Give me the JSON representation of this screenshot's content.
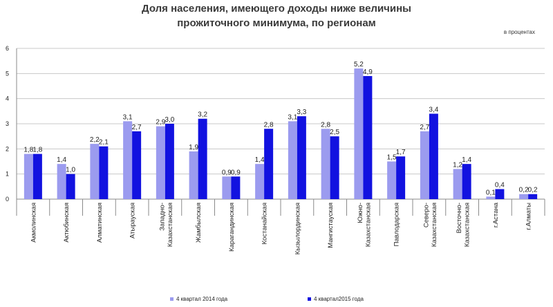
{
  "chart_data": {
    "type": "bar",
    "title_line1": "Доля населения, имеющего доходы ниже величины",
    "title_line2": "прожиточного минимума, по регионам",
    "unit_note": "в процентах",
    "ylim": [
      0,
      6
    ],
    "yticks": [
      0,
      1,
      2,
      3,
      4,
      5,
      6
    ],
    "grid": true,
    "legend_position": "bottom",
    "categories": [
      "Акмолинская",
      "Актюбинская",
      "Алматинская",
      "Атырауская",
      "Западно-Казахстанская",
      "Жамбылская",
      "Карагандинская",
      "Костанайская",
      "Кызылординская",
      "Мангистауская",
      "Южно-Казахстанская",
      "Павлодарская",
      "Северо-Казахстанская",
      "Восточно-Казахстанская",
      "г.Астана",
      "г.Алматы"
    ],
    "category_lines": [
      [
        "Акмолинская"
      ],
      [
        "Актюбинская"
      ],
      [
        "Алматинская"
      ],
      [
        "Атырауская"
      ],
      [
        "Западно-",
        "Казахстанская"
      ],
      [
        "Жамбылская"
      ],
      [
        "Карагандинская"
      ],
      [
        "Костанайская"
      ],
      [
        "Кызылординская"
      ],
      [
        "Мангистауская"
      ],
      [
        "Южно-",
        "Казахстанская"
      ],
      [
        "Павлодарская"
      ],
      [
        "Северо-",
        "Казахстанская"
      ],
      [
        "Восточно-",
        "Казахстанская"
      ],
      [
        "г.Астана"
      ],
      [
        "г.Алматы"
      ]
    ],
    "series": [
      {
        "name": "4 квартал 2014 года",
        "color": "#9b9bef",
        "values": [
          1.8,
          1.4,
          2.2,
          3.1,
          2.9,
          1.9,
          0.9,
          1.4,
          3.1,
          2.8,
          5.2,
          1.5,
          2.7,
          1.2,
          0.1,
          0.2
        ],
        "labels": [
          "1,8",
          "1,4",
          "2,2",
          "3,1",
          "2,9",
          "1,9",
          "0,9",
          "1,4",
          "3,1",
          "2,8",
          "5,2",
          "1,5",
          "2,7",
          "1,2",
          "0,1",
          "0,2"
        ]
      },
      {
        "name": "4 квартал2015 года",
        "color": "#1212e0",
        "values": [
          1.8,
          1.0,
          2.1,
          2.7,
          3.0,
          3.2,
          0.9,
          2.8,
          3.3,
          2.5,
          4.9,
          1.7,
          3.4,
          1.4,
          0.4,
          0.2
        ],
        "labels": [
          "1,8",
          "1,0",
          "2,1",
          "2,7",
          "3,0",
          "3,2",
          "0,9",
          "2,8",
          "3,3",
          "2,5",
          "4,9",
          "1,7",
          "3,4",
          "1,4",
          "0,4",
          "0,2"
        ]
      }
    ]
  }
}
